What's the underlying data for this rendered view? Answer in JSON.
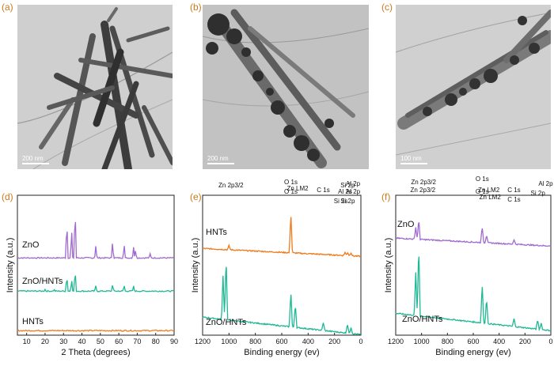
{
  "panels": {
    "a": {
      "label": "(a)",
      "scale": "200 nm"
    },
    "b": {
      "label": "(b)",
      "scale": "200 nm"
    },
    "c": {
      "label": "(c)",
      "scale": "100 nm"
    },
    "d": {
      "label": "(d)"
    },
    "e": {
      "label": "(e)"
    },
    "f": {
      "label": "(f)"
    }
  },
  "chart_data": [
    {
      "panel": "d",
      "type": "line",
      "xlabel": "2 Theta (degrees)",
      "ylabel": "Intensity (a.u.)",
      "xlim": [
        5,
        90
      ],
      "xticks": [
        "10",
        "20",
        "30",
        "40",
        "50",
        "60",
        "70",
        "80",
        "90"
      ],
      "series": [
        {
          "name": "ZnO",
          "color": "#a06ad0",
          "peaks": [
            31.8,
            34.4,
            36.3,
            47.5,
            56.6,
            62.9,
            68.0,
            69.1,
            77.0
          ]
        },
        {
          "name": "ZnO/HNTs",
          "color": "#1fb894",
          "peaks": [
            20.0,
            24.9,
            31.8,
            34.4,
            36.3,
            47.5,
            56.6,
            62.9,
            68.0
          ]
        },
        {
          "name": "HNTs",
          "color": "#f07a1a",
          "peaks": []
        }
      ]
    },
    {
      "panel": "e",
      "type": "line",
      "xlabel": "Binding energy (ev)",
      "ylabel": "Intensity (a.u.)",
      "xlim": [
        1200,
        0
      ],
      "xticks": [
        "1200",
        "1000",
        "800",
        "600",
        "400",
        "200",
        "0"
      ],
      "series": [
        {
          "name": "HNTs",
          "color": "#f07a1a"
        },
        {
          "name": "ZnO/HNTs",
          "color": "#1fb894"
        }
      ],
      "annotations": {
        "top": [
          "O 1s",
          "Al 2s",
          "Si 2s",
          "Si 2p",
          "Al 2p"
        ],
        "bottom": [
          "Zn 2p3/2",
          "O 1s",
          "Zn LM2",
          "C 1s",
          "Si 2p",
          "Al 2p"
        ]
      }
    },
    {
      "panel": "f",
      "type": "line",
      "xlabel": "Binding energy (ev)",
      "ylabel": "Intensity (a.u.)",
      "xlim": [
        1200,
        0
      ],
      "xticks": [
        "1200",
        "1000",
        "800",
        "600",
        "400",
        "200",
        "0"
      ],
      "series": [
        {
          "name": "ZnO",
          "color": "#a06ad0"
        },
        {
          "name": "ZnO/HNTs",
          "color": "#1fb894"
        }
      ],
      "annotations": {
        "top": [
          "Zn 2p3/2",
          "O 1s",
          "Zn LM2",
          "C 1s"
        ],
        "bottom": [
          "Zn 2p3/2",
          "O 1s",
          "Zn LM2",
          "C 1s",
          "Si 2p",
          "Al 2p"
        ]
      }
    }
  ]
}
